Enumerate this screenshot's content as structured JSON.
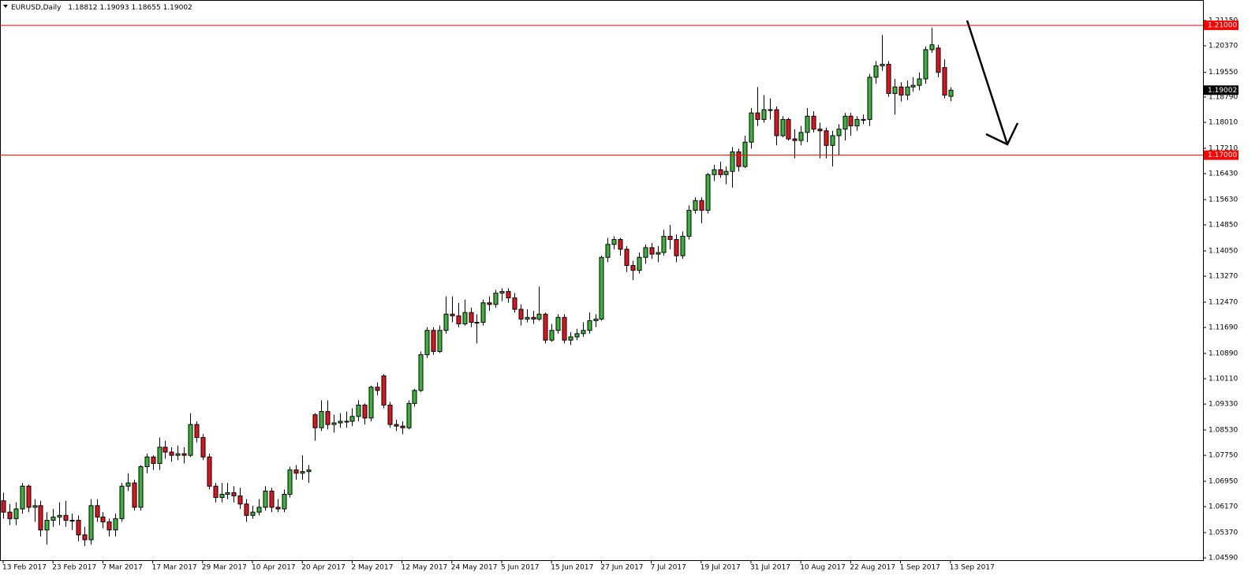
{
  "chart_data": {
    "type": "candlestick",
    "symbol": "EURUSD,Daily",
    "categories": [
      "13 Feb 2017",
      null,
      null,
      null,
      null,
      null,
      null,
      null,
      "23 Feb 2017",
      null,
      null,
      null,
      null,
      null,
      null,
      null,
      "7 Mar 2017",
      null,
      null,
      null,
      null,
      null,
      null,
      null,
      "17 Mar 2017",
      null,
      null,
      null,
      null,
      null,
      null,
      null,
      "29 Mar 2017",
      null,
      null,
      null,
      null,
      null,
      null,
      null,
      "10 Apr 2017",
      null,
      null,
      null,
      null,
      null,
      null,
      null,
      "20 Apr 2017",
      null,
      null,
      null,
      null,
      null,
      null,
      null,
      "2 May 2017",
      null,
      null,
      null,
      null,
      null,
      null,
      null,
      "12 May 2017",
      null,
      null,
      null,
      null,
      null,
      null,
      null,
      "24 May 2017",
      null,
      null,
      null,
      null,
      null,
      null,
      null,
      "5 Jun 2017",
      null,
      null,
      null,
      null,
      null,
      null,
      null,
      "15 Jun 2017",
      null,
      null,
      null,
      null,
      null,
      null,
      null,
      "27 Jun 2017",
      null,
      null,
      null,
      null,
      null,
      null,
      null,
      "7 Jul 2017",
      null,
      null,
      null,
      null,
      null,
      null,
      null,
      "19 Jul 2017",
      null,
      null,
      null,
      null,
      null,
      null,
      null,
      "31 Jul 2017",
      null,
      null,
      null,
      null,
      null,
      null,
      null,
      "10 Aug 2017",
      null,
      null,
      null,
      null,
      null,
      null,
      null,
      "22 Aug 2017",
      null,
      null,
      null,
      null,
      null,
      null,
      null,
      "1 Sep 2017",
      null,
      null,
      null,
      null,
      null,
      null,
      null,
      "13 Sep 2017"
    ],
    "open": [
      1.0635,
      1.06,
      1.058,
      1.061,
      1.068,
      1.0615,
      1.062,
      1.0545,
      1.0575,
      1.0585,
      1.059,
      1.0575,
      1.0575,
      1.053,
      1.0515,
      1.062,
      1.0585,
      1.057,
      1.0545,
      1.058,
      1.068,
      1.069,
      1.0615,
      1.074,
      1.077,
      1.075,
      1.08,
      1.0785,
      1.0775,
      1.078,
      1.0775,
      1.087,
      1.083,
      1.077,
      1.068,
      1.0645,
      1.0655,
      1.066,
      1.065,
      1.0625,
      1.059,
      1.06,
      1.0615,
      1.0665,
      1.0615,
      1.061,
      1.0655,
      1.073,
      1.072,
      1.0725,
      1.09,
      1.086,
      1.091,
      1.087,
      1.0875,
      1.088,
      1.088,
      1.0895,
      1.093,
      1.089,
      1.0985,
      1.102,
      1.093,
      1.087,
      1.0865,
      1.086,
      1.0935,
      1.0975,
      1.1085,
      1.116,
      1.1095,
      1.116,
      1.121,
      1.1205,
      1.118,
      1.1215,
      1.1185,
      1.1185,
      1.1245,
      1.124,
      1.1275,
      1.128,
      1.126,
      1.1225,
      1.1195,
      1.12,
      1.1195,
      1.121,
      1.113,
      1.116,
      1.12,
      1.113,
      1.114,
      1.115,
      1.116,
      1.119,
      1.1195,
      1.1385,
      1.1425,
      1.144,
      1.141,
      1.136,
      1.1345,
      1.1385,
      1.1415,
      1.1395,
      1.14,
      1.145,
      1.144,
      1.139,
      1.145,
      1.153,
      1.156,
      1.153,
      1.164,
      1.1655,
      1.164,
      1.165,
      1.171,
      1.1665,
      1.174,
      1.183,
      1.181,
      1.184,
      1.184,
      1.176,
      1.181,
      1.175,
      1.1745,
      1.177,
      1.182,
      1.178,
      1.1775,
      1.173,
      1.176,
      1.178,
      1.182,
      1.179,
      1.181,
      1.181,
      1.194,
      1.1975,
      1.198,
      1.189,
      1.191,
      1.1885,
      1.191,
      1.1915,
      1.1935,
      1.2025,
      1.203,
      1.197,
      1.18812
    ],
    "high": [
      1.066,
      1.0625,
      1.063,
      1.069,
      1.0685,
      1.064,
      1.0635,
      1.06,
      1.061,
      1.063,
      1.0635,
      1.0595,
      1.059,
      1.0555,
      1.064,
      1.064,
      1.06,
      1.058,
      1.0595,
      1.069,
      1.072,
      1.07,
      1.0745,
      1.078,
      1.0775,
      1.083,
      1.082,
      1.08,
      1.0805,
      1.08,
      1.0905,
      1.088,
      1.084,
      1.078,
      1.069,
      1.069,
      1.069,
      1.068,
      1.0675,
      1.064,
      1.062,
      1.064,
      1.068,
      1.0675,
      1.064,
      1.067,
      1.074,
      1.0745,
      1.0775,
      1.0745,
      1.0905,
      1.0945,
      1.0945,
      1.09,
      1.0905,
      1.091,
      1.092,
      1.0945,
      1.0935,
      1.099,
      1.1,
      1.1025,
      1.094,
      1.0885,
      1.088,
      1.0945,
      1.098,
      1.1095,
      1.117,
      1.117,
      1.1175,
      1.1265,
      1.1265,
      1.1245,
      1.1255,
      1.123,
      1.121,
      1.1255,
      1.1265,
      1.1285,
      1.129,
      1.129,
      1.1275,
      1.124,
      1.1225,
      1.122,
      1.1295,
      1.1215,
      1.118,
      1.121,
      1.121,
      1.1155,
      1.1165,
      1.1185,
      1.1215,
      1.121,
      1.139,
      1.1445,
      1.145,
      1.1445,
      1.142,
      1.1375,
      1.14,
      1.1425,
      1.143,
      1.142,
      1.147,
      1.1485,
      1.1455,
      1.1465,
      1.1545,
      1.157,
      1.157,
      1.1645,
      1.167,
      1.168,
      1.1665,
      1.1725,
      1.172,
      1.176,
      1.1845,
      1.191,
      1.1885,
      1.1875,
      1.185,
      1.182,
      1.1815,
      1.178,
      1.179,
      1.1845,
      1.1835,
      1.18,
      1.1785,
      1.1775,
      1.1795,
      1.183,
      1.183,
      1.182,
      1.1825,
      1.195,
      1.199,
      1.207,
      1.199,
      1.1935,
      1.1925,
      1.193,
      1.194,
      1.1955,
      1.2035,
      1.2092,
      1.204,
      1.1995,
      1.19093
    ],
    "low": [
      1.058,
      1.056,
      1.056,
      1.0595,
      1.06,
      1.057,
      1.0525,
      1.05,
      1.0555,
      1.056,
      1.0555,
      1.0545,
      1.051,
      1.0495,
      1.05,
      1.057,
      1.055,
      1.0525,
      1.0525,
      1.057,
      1.0665,
      1.0605,
      1.0605,
      1.072,
      1.073,
      1.073,
      1.0765,
      1.0755,
      1.076,
      1.075,
      1.077,
      1.0815,
      1.076,
      1.067,
      1.063,
      1.063,
      1.064,
      1.063,
      1.061,
      1.057,
      1.058,
      1.059,
      1.0605,
      1.06,
      1.06,
      1.06,
      1.0645,
      1.07,
      1.07,
      1.069,
      1.082,
      1.085,
      1.0855,
      1.0845,
      1.086,
      1.086,
      1.0865,
      1.088,
      1.087,
      1.088,
      1.096,
      1.092,
      1.086,
      1.085,
      1.084,
      1.0855,
      1.0925,
      1.097,
      1.1075,
      1.1085,
      1.109,
      1.115,
      1.1185,
      1.117,
      1.1175,
      1.117,
      1.112,
      1.1175,
      1.122,
      1.123,
      1.125,
      1.1245,
      1.1215,
      1.1175,
      1.1185,
      1.118,
      1.119,
      1.112,
      1.1125,
      1.115,
      1.112,
      1.1115,
      1.113,
      1.114,
      1.115,
      1.117,
      1.119,
      1.137,
      1.141,
      1.139,
      1.134,
      1.1315,
      1.1335,
      1.1365,
      1.138,
      1.137,
      1.139,
      1.141,
      1.137,
      1.138,
      1.144,
      1.152,
      1.149,
      1.152,
      1.162,
      1.163,
      1.161,
      1.16,
      1.165,
      1.166,
      1.172,
      1.179,
      1.18,
      1.181,
      1.173,
      1.1755,
      1.1745,
      1.169,
      1.173,
      1.174,
      1.177,
      1.169,
      1.169,
      1.1665,
      1.17,
      1.1745,
      1.176,
      1.1775,
      1.1795,
      1.179,
      1.192,
      1.196,
      1.188,
      1.1825,
      1.1865,
      1.187,
      1.1895,
      1.19,
      1.192,
      1.2015,
      1.194,
      1.1875,
      1.18655
    ],
    "close": [
      1.06,
      1.058,
      1.061,
      1.068,
      1.0615,
      1.062,
      1.0545,
      1.0575,
      1.0585,
      1.059,
      1.0575,
      1.0575,
      1.053,
      1.0515,
      1.062,
      1.0585,
      1.057,
      1.0545,
      1.058,
      1.068,
      1.069,
      1.0615,
      1.074,
      1.077,
      1.075,
      1.08,
      1.0785,
      1.0775,
      1.078,
      1.0775,
      1.087,
      1.083,
      1.077,
      1.068,
      1.0645,
      1.0655,
      1.066,
      1.065,
      1.0625,
      1.059,
      1.06,
      1.0615,
      1.0665,
      1.0615,
      1.061,
      1.0655,
      1.073,
      1.072,
      1.0725,
      1.073,
      1.086,
      1.091,
      1.087,
      1.0875,
      1.088,
      1.088,
      1.0895,
      1.093,
      1.089,
      1.0985,
      1.0975,
      1.093,
      1.087,
      1.0865,
      1.086,
      1.0935,
      1.0975,
      1.1085,
      1.116,
      1.1095,
      1.116,
      1.121,
      1.1205,
      1.118,
      1.1215,
      1.1185,
      1.1185,
      1.1245,
      1.124,
      1.1275,
      1.128,
      1.126,
      1.1225,
      1.1195,
      1.12,
      1.1195,
      1.121,
      1.113,
      1.116,
      1.12,
      1.113,
      1.114,
      1.115,
      1.116,
      1.119,
      1.1195,
      1.1385,
      1.1425,
      1.144,
      1.141,
      1.136,
      1.1345,
      1.1385,
      1.1415,
      1.1395,
      1.14,
      1.145,
      1.144,
      1.139,
      1.145,
      1.153,
      1.156,
      1.153,
      1.164,
      1.1655,
      1.164,
      1.165,
      1.171,
      1.1665,
      1.174,
      1.183,
      1.181,
      1.184,
      1.184,
      1.176,
      1.181,
      1.175,
      1.1745,
      1.177,
      1.182,
      1.178,
      1.1775,
      1.173,
      1.176,
      1.178,
      1.182,
      1.179,
      1.181,
      1.181,
      1.194,
      1.1975,
      1.198,
      1.189,
      1.191,
      1.1885,
      1.191,
      1.1915,
      1.1935,
      1.2025,
      1.204,
      1.1955,
      1.1885,
      1.19002
    ],
    "up_color": "#3cb43c",
    "down_color": "#e0141e",
    "ylim": [
      1.0452,
      1.2178
    ],
    "yticks": [
      {
        "value": 1.2115,
        "label": "1.21150"
      },
      {
        "value": 1.2037,
        "label": "1.20370"
      },
      {
        "value": 1.1955,
        "label": "1.19550"
      },
      {
        "value": 1.1879,
        "label": "1.18790"
      },
      {
        "value": 1.1801,
        "label": "1.18010"
      },
      {
        "value": 1.1721,
        "label": "1.17210"
      },
      {
        "value": 1.1643,
        "label": "1.16430"
      },
      {
        "value": 1.1563,
        "label": "1.15630"
      },
      {
        "value": 1.1485,
        "label": "1.14850"
      },
      {
        "value": 1.1405,
        "label": "1.14050"
      },
      {
        "value": 1.1327,
        "label": "1.13270"
      },
      {
        "value": 1.1247,
        "label": "1.12470"
      },
      {
        "value": 1.1169,
        "label": "1.11690"
      },
      {
        "value": 1.1089,
        "label": "1.10890"
      },
      {
        "value": 1.1011,
        "label": "1.10110"
      },
      {
        "value": 1.0933,
        "label": "1.09330"
      },
      {
        "value": 1.0853,
        "label": "1.08530"
      },
      {
        "value": 1.0775,
        "label": "1.07750"
      },
      {
        "value": 1.0695,
        "label": "1.06950"
      },
      {
        "value": 1.0617,
        "label": "1.06170"
      },
      {
        "value": 1.0537,
        "label": "1.05370"
      },
      {
        "value": 1.0459,
        "label": "1.04590"
      }
    ],
    "hlines": [
      {
        "value": 1.21,
        "label": "1.21000"
      },
      {
        "value": 1.17,
        "label": "1.17000"
      }
    ],
    "hline_color": "#ff0000"
  }
}
